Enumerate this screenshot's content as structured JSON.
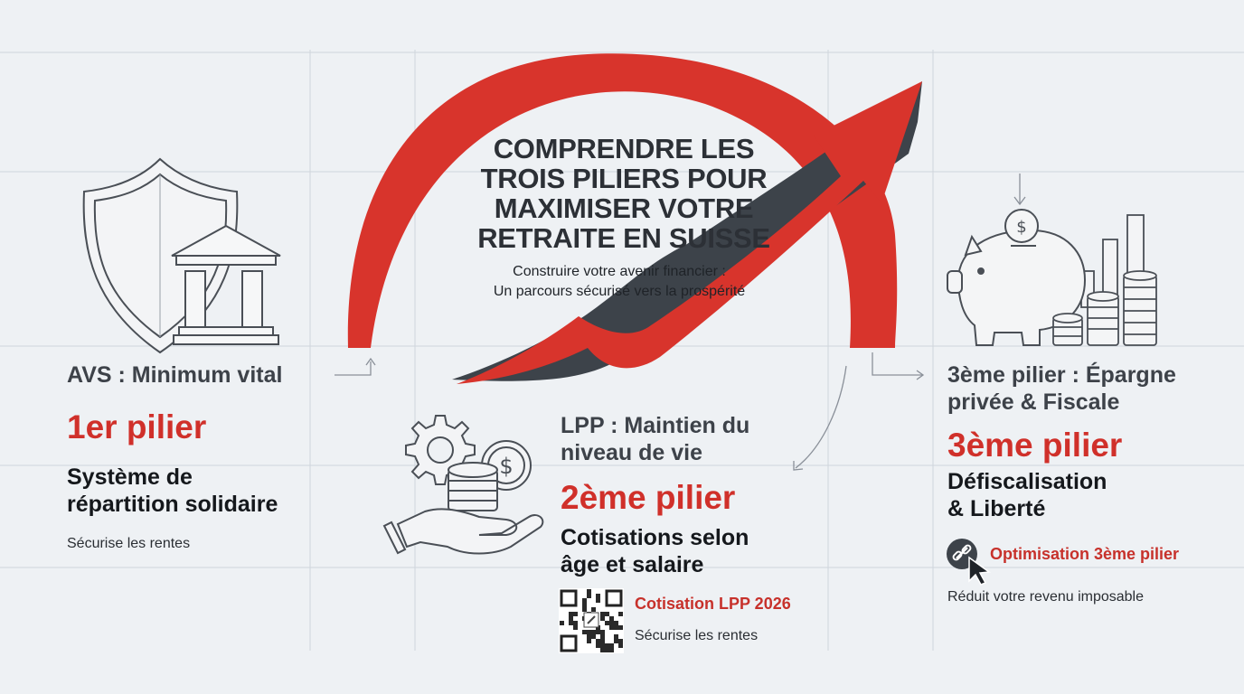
{
  "title": "Comprendre les trois piliers pour maximiser votre retraite en Suisse",
  "subtitle_line1": "Construire votre avenir financier :",
  "subtitle_line2": "Un parcours sécurisé vers la prospérité",
  "pillar1": {
    "heading": "AVS : Minimum vital",
    "name": "1er pilier",
    "desc_line1": "Système de",
    "desc_line2": "répartition solidaire",
    "note": "Sécurise les rentes"
  },
  "pillar2": {
    "heading_line1": "LPP : Maintien du",
    "heading_line2": "niveau de vie",
    "name": "2ème pilier",
    "desc_line1": "Cotisations selon",
    "desc_line2": "âge et salaire",
    "link": "Cotisation LPP 2026",
    "note": "Sécurise les rentes"
  },
  "pillar3": {
    "heading_line1": "3ème pilier : Épargne",
    "heading_line2": "privée & Fiscale",
    "name": "3ème pilier",
    "desc_line1": "Défiscalisation",
    "desc_line2": "& Liberté",
    "link": "Optimisation 3ème pilier",
    "note": "Réduit votre revenu imposable"
  },
  "colors": {
    "red": "#d0302a",
    "dark": "#3a3f46",
    "background": "#eef1f4"
  },
  "icons": {
    "pillar1": [
      "shield-icon",
      "bank-building-icon"
    ],
    "pillar2": [
      "gear-icon",
      "coin-stack-icon",
      "dollar-coin-icon",
      "hand-icon",
      "qr-code-icon"
    ],
    "pillar3": [
      "piggy-bank-icon",
      "dollar-coin-icon",
      "bar-chart-icon",
      "coin-stack-icon",
      "link-icon",
      "cursor-icon"
    ],
    "center": [
      "growth-arrow-icon"
    ]
  }
}
